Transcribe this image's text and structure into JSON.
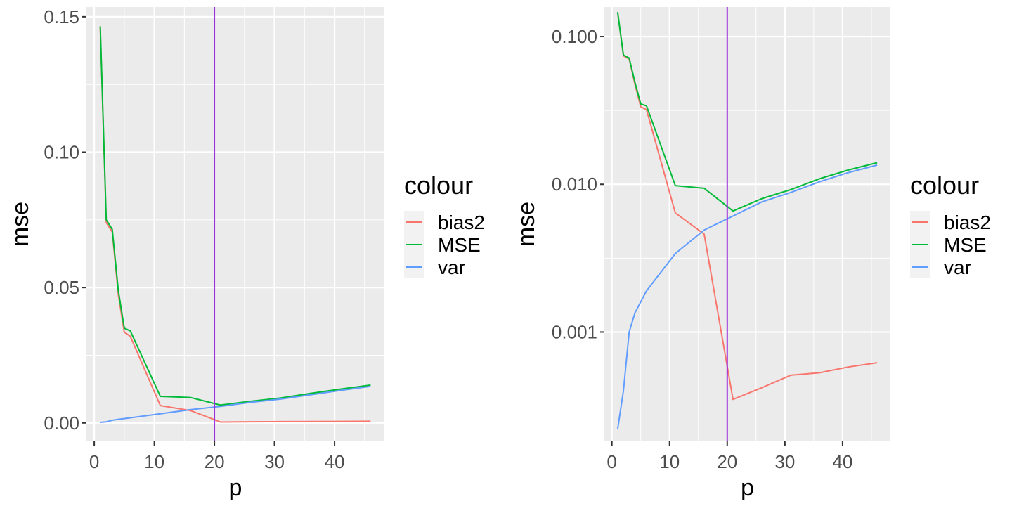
{
  "chart_data": [
    {
      "type": "line",
      "xlabel": "p",
      "ylabel": "mse",
      "xlim": [
        -1.3,
        48.3
      ],
      "ylim": [
        -0.0068,
        0.1536
      ],
      "x_ticks": [
        0,
        10,
        20,
        30,
        40
      ],
      "x_tick_labels": [
        "0",
        "10",
        "20",
        "30",
        "40"
      ],
      "y_ticks": [
        0,
        0.05,
        0.1,
        0.15
      ],
      "y_tick_labels": [
        "0.00",
        "0.05",
        "0.10",
        "0.15"
      ],
      "y_scale": "linear",
      "vline": {
        "x": 20,
        "color": "#9b30d9"
      },
      "grid": true,
      "legend": {
        "title": "colour",
        "position": "right"
      },
      "x": [
        1,
        2,
        3,
        4,
        5,
        6,
        11,
        16,
        21,
        26,
        31,
        36,
        41,
        46
      ],
      "series": [
        {
          "name": "bias2",
          "color": "#f8766d",
          "values": [
            0.146,
            0.074,
            0.0705,
            0.0475,
            0.0335,
            0.032,
            0.0064,
            0.0046,
            0.00035,
            0.00042,
            0.00051,
            0.00053,
            0.00058,
            0.00062
          ]
        },
        {
          "name": "MSE",
          "color": "#00ba38",
          "values": [
            0.1465,
            0.075,
            0.0715,
            0.049,
            0.035,
            0.034,
            0.0098,
            0.0094,
            0.0066,
            0.008,
            0.0092,
            0.0109,
            0.0125,
            0.014
          ]
        },
        {
          "name": "var",
          "color": "#619cff",
          "values": [
            0.00022,
            0.0004,
            0.001,
            0.00135,
            0.0016,
            0.0019,
            0.0034,
            0.0049,
            0.0061,
            0.0076,
            0.0088,
            0.0104,
            0.012,
            0.0135
          ]
        }
      ]
    },
    {
      "type": "line",
      "xlabel": "p",
      "ylabel": "mse",
      "xlim": [
        -1.3,
        48.3
      ],
      "ylim_log10": [
        -3.74,
        -0.8
      ],
      "x_ticks": [
        0,
        10,
        20,
        30,
        40
      ],
      "x_tick_labels": [
        "0",
        "10",
        "20",
        "30",
        "40"
      ],
      "y_ticks": [
        0.001,
        0.01,
        0.1
      ],
      "y_tick_labels": [
        "0.001",
        "0.010",
        "0.100"
      ],
      "y_scale": "log10",
      "vline": {
        "x": 20,
        "color": "#9b30d9"
      },
      "grid": true,
      "legend": {
        "title": "colour",
        "position": "right"
      },
      "x": [
        1,
        2,
        3,
        4,
        5,
        6,
        11,
        16,
        21,
        26,
        31,
        36,
        41,
        46
      ],
      "series": [
        {
          "name": "bias2",
          "color": "#f8766d",
          "values": [
            0.146,
            0.074,
            0.0705,
            0.0475,
            0.0335,
            0.032,
            0.0064,
            0.0046,
            0.00035,
            0.00042,
            0.00051,
            0.00053,
            0.00058,
            0.00062
          ]
        },
        {
          "name": "MSE",
          "color": "#00ba38",
          "values": [
            0.1465,
            0.075,
            0.0715,
            0.049,
            0.035,
            0.034,
            0.0098,
            0.0094,
            0.0066,
            0.008,
            0.0092,
            0.0109,
            0.0125,
            0.014
          ]
        },
        {
          "name": "var",
          "color": "#619cff",
          "values": [
            0.00022,
            0.0004,
            0.001,
            0.00135,
            0.0016,
            0.0019,
            0.0034,
            0.0049,
            0.0061,
            0.0076,
            0.0088,
            0.0104,
            0.012,
            0.0135
          ]
        }
      ]
    }
  ]
}
